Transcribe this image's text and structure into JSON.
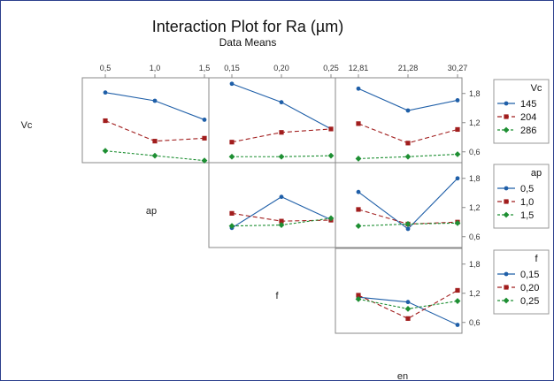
{
  "chart_data": {
    "type": "line",
    "title": "Interaction Plot for Ra (µm)",
    "subtitle": "Data Means",
    "factors": [
      {
        "key": "Vc",
        "label": "Vc",
        "levels": [
          "145",
          "204",
          "286"
        ],
        "ticks": []
      },
      {
        "key": "ap",
        "label": "ap",
        "levels": [
          "0,5",
          "1,0",
          "1,5"
        ],
        "ticks": [
          "0,5",
          "1,0",
          "1,5"
        ]
      },
      {
        "key": "f",
        "label": "f",
        "levels": [
          "0,15",
          "0,20",
          "0,25"
        ],
        "ticks": [
          "0,15",
          "0,20",
          "0,25"
        ]
      },
      {
        "key": "en",
        "label": "en",
        "levels": [
          "12,81",
          "21,28",
          "30,27"
        ],
        "ticks": [
          "12,81",
          "21,28",
          "30,27"
        ]
      }
    ],
    "y_ticks": [
      "1,8",
      "1,2",
      "0,6"
    ],
    "ylim": [
      0.45,
      2.05
    ],
    "line_colors": [
      "#1f5fa8",
      "#a11d1d",
      "#1e8f33"
    ],
    "legends": [
      {
        "title": "Vc",
        "entries": [
          "145",
          "204",
          "286"
        ]
      },
      {
        "title": "ap",
        "entries": [
          "0,5",
          "1,0",
          "1,5"
        ]
      },
      {
        "title": "f",
        "entries": [
          "0,15",
          "0,20",
          "0,25"
        ]
      }
    ],
    "panels": [
      {
        "row": 0,
        "col": 1,
        "x_factor": "ap",
        "trace_factor": "Vc",
        "series": [
          [
            1.82,
            1.65,
            1.26
          ],
          [
            1.24,
            0.82,
            0.88
          ],
          [
            0.62,
            0.52,
            0.42
          ]
        ]
      },
      {
        "row": 0,
        "col": 2,
        "x_factor": "f",
        "trace_factor": "Vc",
        "series": [
          [
            2.0,
            1.62,
            1.07
          ],
          [
            0.8,
            1.0,
            1.07
          ],
          [
            0.5,
            0.5,
            0.52
          ]
        ]
      },
      {
        "row": 0,
        "col": 3,
        "x_factor": "en",
        "trace_factor": "Vc",
        "series": [
          [
            1.9,
            1.45,
            1.66
          ],
          [
            1.18,
            0.78,
            1.06
          ],
          [
            0.46,
            0.5,
            0.55
          ]
        ]
      },
      {
        "row": 1,
        "col": 2,
        "x_factor": "f",
        "trace_factor": "ap",
        "series": [
          [
            0.78,
            1.42,
            0.95
          ],
          [
            1.08,
            0.92,
            0.94
          ],
          [
            0.82,
            0.84,
            0.98
          ]
        ]
      },
      {
        "row": 1,
        "col": 3,
        "x_factor": "en",
        "trace_factor": "ap",
        "series": [
          [
            1.52,
            0.76,
            1.8
          ],
          [
            1.16,
            0.86,
            0.9
          ],
          [
            0.82,
            0.86,
            0.88
          ]
        ]
      },
      {
        "row": 2,
        "col": 3,
        "x_factor": "en",
        "trace_factor": "f",
        "series": [
          [
            1.12,
            1.02,
            0.55
          ],
          [
            1.16,
            0.68,
            1.26
          ],
          [
            1.08,
            0.88,
            1.04
          ]
        ]
      }
    ]
  }
}
